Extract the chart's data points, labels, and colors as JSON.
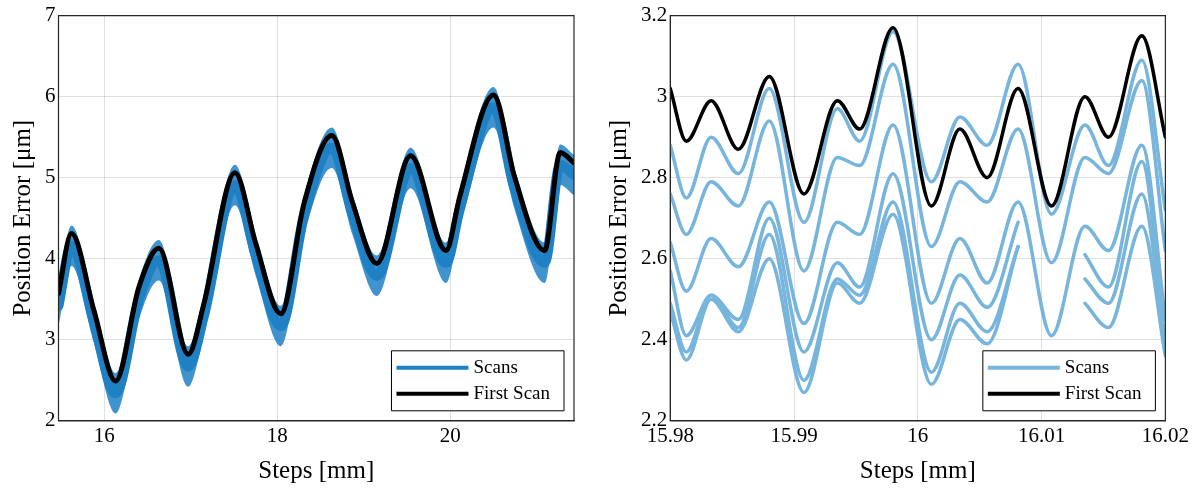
{
  "chart_data": [
    {
      "type": "line",
      "xlabel": "Steps [mm]",
      "ylabel": "Position Error [μm]",
      "xlim": [
        15.47,
        21.43
      ],
      "ylim": [
        2,
        7
      ],
      "xticks": [
        16,
        18,
        20
      ],
      "yticks": [
        2,
        3,
        4,
        5,
        6,
        7
      ],
      "grid": true,
      "legend": "bottom right",
      "marker": "none",
      "line_style": "solid",
      "x": [
        15.47,
        15.62,
        15.88,
        16.13,
        16.4,
        16.63,
        16.97,
        17.15,
        17.51,
        17.75,
        18.04,
        18.31,
        18.63,
        18.87,
        19.15,
        19.54,
        19.95,
        20.11,
        20.5,
        20.74,
        21.09,
        21.27,
        21.43
      ],
      "series": [
        {
          "name": "Scans",
          "color": "#1f80c4",
          "values": [
            3.42,
            4.16,
            3.21,
            2.34,
            3.5,
            3.98,
            2.67,
            3.29,
            4.91,
            4.04,
            3.17,
            4.54,
            5.37,
            4.54,
            3.79,
            5.12,
            3.95,
            4.62,
            5.87,
            4.87,
            3.95,
            5.16,
            5.03
          ],
          "lower": [
            3.17,
            3.91,
            2.96,
            2.09,
            3.25,
            3.73,
            2.42,
            3.04,
            4.66,
            3.79,
            2.92,
            4.29,
            5.12,
            4.29,
            3.54,
            4.87,
            3.7,
            4.37,
            5.62,
            4.62,
            3.7,
            4.91,
            4.78
          ],
          "upper": [
            3.67,
            4.41,
            3.46,
            2.59,
            3.75,
            4.23,
            2.92,
            3.54,
            5.16,
            4.29,
            3.42,
            4.79,
            5.62,
            4.79,
            4.04,
            5.37,
            4.2,
            4.87,
            6.12,
            5.12,
            4.2,
            5.41,
            5.28
          ]
        },
        {
          "name": "First Scan",
          "color": "#000000",
          "values": [
            3.57,
            4.31,
            3.36,
            2.49,
            3.65,
            4.13,
            2.82,
            3.44,
            5.06,
            4.19,
            3.32,
            4.69,
            5.52,
            4.69,
            3.94,
            5.27,
            4.1,
            4.77,
            6.02,
            5.02,
            4.1,
            5.31,
            5.18
          ]
        }
      ]
    },
    {
      "type": "line",
      "xlabel": "Steps [mm]",
      "ylabel": "Position Error [μm]",
      "xlim": [
        15.98,
        16.02
      ],
      "ylim": [
        2.2,
        3.2
      ],
      "xticks": [
        15.98,
        15.99,
        16,
        16.01,
        16.02
      ],
      "yticks": [
        2.2,
        2.4,
        2.6,
        2.8,
        3,
        3.2
      ],
      "grid": true,
      "legend": "bottom right",
      "marker": "none",
      "line_style": "solid",
      "x": [
        15.98,
        15.9813,
        15.9833,
        15.9855,
        15.988,
        15.9908,
        15.9935,
        15.9953,
        15.998,
        16.0011,
        16.0034,
        16.0056,
        16.0081,
        16.0108,
        16.0135,
        16.0154,
        16.0181,
        16.02
      ],
      "series": [
        {
          "name": "Scans",
          "color": "#77b5dc",
          "values": [
            2.88,
            2.75,
            2.9,
            2.81,
            3.02,
            2.69,
            2.97,
            2.89,
            3.16,
            2.79,
            2.95,
            2.88,
            3.08,
            2.71,
            2.93,
            2.83,
            3.09,
            2.72
          ]
        },
        {
          "color": "#77b5dc",
          "values": [
            2.76,
            2.66,
            2.79,
            2.73,
            2.94,
            2.57,
            2.85,
            2.83,
            3.08,
            2.63,
            2.79,
            2.74,
            2.92,
            2.59,
            2.85,
            2.81,
            3.04,
            2.62
          ]
        },
        {
          "color": "#77b5dc",
          "values": [
            2.64,
            2.52,
            2.65,
            2.58,
            2.74,
            2.44,
            2.69,
            2.66,
            2.93,
            2.49,
            2.65,
            2.54,
            2.74,
            2.41,
            2.68,
            2.62,
            2.88,
            2.45
          ]
        },
        {
          "color": "#77b5dc",
          "values": [
            2.57,
            2.41,
            2.51,
            2.45,
            2.7,
            2.37,
            2.59,
            2.53,
            2.81,
            2.4,
            2.56,
            2.48,
            2.69,
            null,
            2.61,
            2.53,
            2.84,
            2.39
          ]
        },
        {
          "color": "#77b5dc",
          "values": [
            2.49,
            2.37,
            2.51,
            2.43,
            2.66,
            2.3,
            2.55,
            2.51,
            2.74,
            2.32,
            2.49,
            2.42,
            2.63,
            null,
            2.55,
            2.49,
            2.76,
            2.37
          ]
        },
        {
          "color": "#77b5dc",
          "values": [
            2.47,
            2.35,
            2.5,
            2.42,
            2.6,
            2.27,
            2.54,
            2.49,
            2.71,
            2.29,
            2.45,
            2.39,
            2.63,
            null,
            2.49,
            2.43,
            2.68,
            2.36
          ]
        },
        {
          "name": "First Scan",
          "color": "#000000",
          "values": [
            3.02,
            2.89,
            2.99,
            2.87,
            3.05,
            2.76,
            2.99,
            2.92,
            3.17,
            2.73,
            2.92,
            2.8,
            3.02,
            2.73,
            3.0,
            2.9,
            3.15,
            2.9
          ]
        }
      ]
    }
  ]
}
